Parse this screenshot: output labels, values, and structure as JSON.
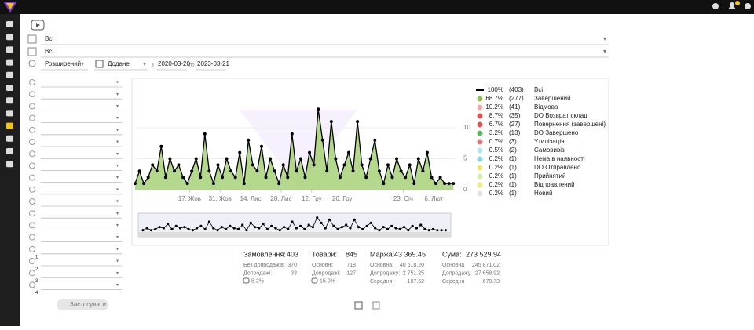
{
  "filters": {
    "group": "Всі",
    "warehouse": "Всі",
    "mode": "Розширений",
    "date_field": "Додане",
    "from_label": "з",
    "date_from": "2020-03-20",
    "to_label": "по",
    "date_to": "2023-03-21",
    "indexes": [
      "1",
      "2",
      "3",
      "4"
    ],
    "apply": "Застосувати"
  },
  "chart_data": {
    "type": "line",
    "x": [
      0,
      2,
      4,
      6,
      8,
      10,
      12,
      14,
      16,
      18,
      20,
      22,
      24,
      26,
      28,
      30,
      32,
      34,
      36,
      38,
      40,
      42,
      44,
      46,
      48,
      50,
      52,
      54,
      56,
      58,
      60,
      62,
      64,
      66,
      68,
      70,
      72,
      74,
      76,
      78,
      80,
      82,
      84,
      86,
      88,
      90,
      92,
      94,
      96,
      98,
      100,
      102,
      104,
      106,
      108,
      110,
      112,
      114,
      116,
      118,
      120,
      122,
      124,
      126,
      128,
      130,
      132,
      134,
      136,
      138,
      140,
      142,
      144,
      146
    ],
    "series": [
      {
        "name": "Всі",
        "share": "100%",
        "count": "(403)",
        "color": "#000000",
        "values": [
          1,
          3,
          1,
          2,
          4,
          3,
          7,
          2,
          5,
          3,
          4,
          2,
          1,
          3,
          5,
          2,
          9,
          3,
          1,
          4,
          2,
          5,
          3,
          2,
          6,
          1,
          8,
          4,
          3,
          7,
          2,
          5,
          3,
          1,
          4,
          2,
          9,
          3,
          5,
          2,
          6,
          4,
          13,
          8,
          3,
          11,
          5,
          2,
          4,
          6,
          3,
          11,
          4,
          2,
          5,
          8,
          3,
          1,
          4,
          2,
          5,
          3,
          2,
          4,
          1,
          5,
          3,
          6,
          2,
          1,
          2,
          1,
          1,
          1
        ]
      }
    ],
    "area_color": "#9ccc65",
    "xlim": [
      0,
      147
    ],
    "xticks": [
      {
        "value": 25,
        "label": "17. Жов"
      },
      {
        "value": 39,
        "label": "31. Жов"
      },
      {
        "value": 53,
        "label": "14. Лис"
      },
      {
        "value": 67,
        "label": "28. Лис"
      },
      {
        "value": 81,
        "label": "12. Гру"
      },
      {
        "value": 95,
        "label": "26. Гру"
      },
      {
        "value": 123,
        "label": "23. Січ"
      },
      {
        "value": 137,
        "label": "6. Лют"
      }
    ],
    "ylim": [
      0,
      15
    ],
    "yticks": [
      0,
      5,
      10
    ],
    "grid": true,
    "statuses": [
      {
        "share": "68.7%",
        "count": "(277)",
        "name": "Завершений",
        "color": "#8bc34a"
      },
      {
        "share": "10.2%",
        "count": "(41)",
        "name": "Відмова",
        "color": "#f4a6a6"
      },
      {
        "share": "8.7%",
        "count": "(35)",
        "name": "DO Возврат склад",
        "color": "#e05252"
      },
      {
        "share": "6.7%",
        "count": "(27)",
        "name": "Повернення (завершені)",
        "color": "#d9534f"
      },
      {
        "share": "3.2%",
        "count": "(13)",
        "name": "DO Завершено",
        "color": "#5cb85c"
      },
      {
        "share": "0.7%",
        "count": "(3)",
        "name": "Утилізація",
        "color": "#d97777"
      },
      {
        "share": "0.5%",
        "count": "(2)",
        "name": "Самовивіз",
        "color": "#b5e3ea"
      },
      {
        "share": "0.2%",
        "count": "(1)",
        "name": "Нема в наявності",
        "color": "#86d3e3"
      },
      {
        "share": "0.2%",
        "count": "(1)",
        "name": "DO Отправлено",
        "color": "#f2e36b"
      },
      {
        "share": "0.2%",
        "count": "(1)",
        "name": "Прийнятий",
        "color": "#d4eab5"
      },
      {
        "share": "0.2%",
        "count": "(1)",
        "name": "Відправлений",
        "color": "#ebeb86"
      },
      {
        "share": "0.2%",
        "count": "(1)",
        "name": "Новий",
        "color": "#e3e3e3"
      }
    ]
  },
  "stats": [
    {
      "title": "Замовлення:",
      "total": "403",
      "rows": [
        [
          "Без допродажів:",
          "370"
        ],
        [
          "Допродажі:",
          "33"
        ]
      ],
      "share": "8.2%"
    },
    {
      "title": "Товари:",
      "total": "845",
      "rows": [
        [
          "Основні:",
          "718"
        ],
        [
          "Допродажі:",
          "127"
        ]
      ],
      "share": "15.0%"
    },
    {
      "title": "Маржа:",
      "total": "43 369.45",
      "rows": [
        [
          "Основна:",
          "40 618.20"
        ],
        [
          "Допродажу:",
          "2 751.25"
        ],
        [
          "Середня:",
          "107.62"
        ]
      ]
    },
    {
      "title": "Сума:",
      "total": "273 529.94",
      "rows": [
        [
          "Основна",
          "245 871.02"
        ],
        [
          "Допродажу",
          "27 658.92"
        ],
        [
          "Середня",
          "678.73"
        ]
      ]
    }
  ]
}
